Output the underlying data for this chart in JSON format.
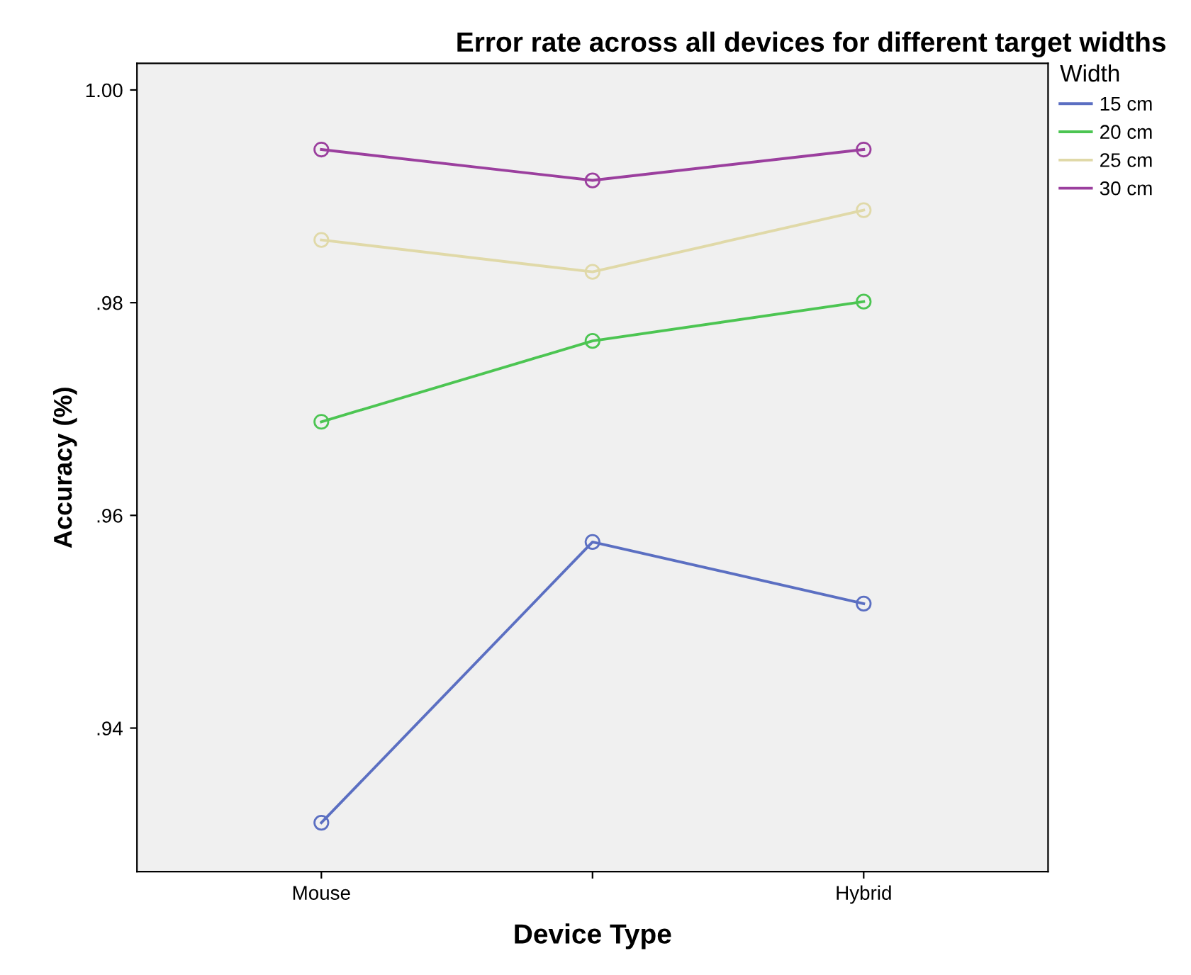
{
  "chart_data": {
    "type": "line",
    "title": "Error rate across all devices for different target widths",
    "xlabel": "Device Type",
    "ylabel": "Accuracy (%)",
    "legend_title": "Width",
    "categories": [
      "Mouse",
      null,
      "Hybrid"
    ],
    "series": [
      {
        "name": "15 cm",
        "color": "#5b6fc2",
        "values": [
          0.9311,
          0.9575,
          0.9517
        ]
      },
      {
        "name": "20 cm",
        "color": "#4cc552",
        "values": [
          0.9688,
          0.9764,
          0.9801
        ]
      },
      {
        "name": "25 cm",
        "color": "#e0d9a8",
        "values": [
          0.9859,
          0.9829,
          0.9887
        ]
      },
      {
        "name": "30 cm",
        "color": "#9b3f9e",
        "values": [
          0.9944,
          0.9915,
          0.9944
        ]
      }
    ],
    "ylim": [
      0.9265,
      1.0025
    ],
    "yticks": [
      {
        "value": 0.94,
        "label": ".94"
      },
      {
        "value": 0.96,
        "label": ".96"
      },
      {
        "value": 0.98,
        "label": ".98"
      },
      {
        "value": 1.0,
        "label": "1.00"
      }
    ],
    "marker": "circle",
    "line_style": "solid",
    "grid": false,
    "legend": "top right"
  }
}
